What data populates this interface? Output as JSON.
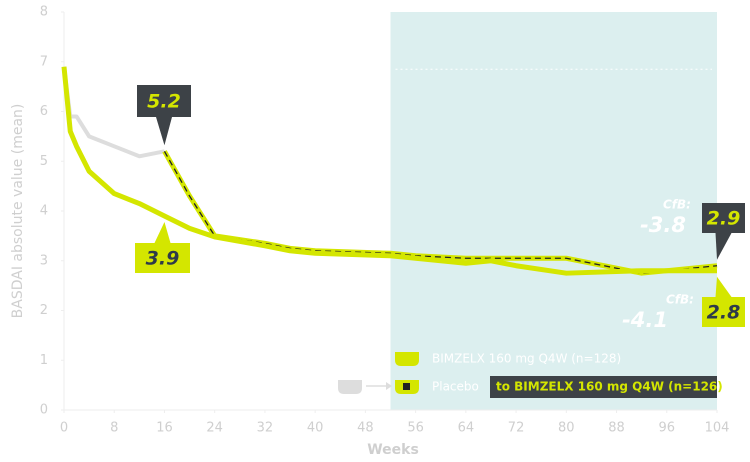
{
  "chart_data": {
    "type": "line",
    "y_label": "BASDAI absolute value (mean)",
    "x_label": "Weeks",
    "x": [
      0,
      1,
      2,
      4,
      8,
      12,
      16,
      20,
      24,
      32,
      36,
      40,
      52,
      56,
      64,
      68,
      72,
      80,
      92,
      104
    ],
    "series": [
      {
        "name": "BIMZELX 160 mg Q4W (n=128)",
        "color": "#d4e600",
        "values": [
          6.9,
          5.6,
          5.3,
          4.8,
          4.35,
          4.15,
          3.9,
          3.65,
          3.48,
          3.3,
          3.2,
          3.15,
          3.1,
          3.05,
          2.95,
          3.0,
          2.9,
          2.75,
          2.8,
          2.8
        ]
      },
      {
        "name": "Placebo",
        "color": "#dddddd",
        "values": [
          6.9,
          5.9,
          5.9,
          5.5,
          5.3,
          5.1,
          5.2,
          null,
          null,
          null,
          null,
          null,
          null,
          null,
          null,
          null,
          null,
          null,
          null,
          null
        ]
      },
      {
        "name": "to BIMZELX 160 mg Q4W (n=126)",
        "color": "#d4e600",
        "dashed": true,
        "values": [
          null,
          null,
          null,
          null,
          null,
          null,
          5.2,
          4.3,
          3.5,
          3.35,
          3.25,
          3.2,
          3.15,
          3.1,
          3.05,
          3.05,
          3.05,
          3.05,
          2.75,
          2.9
        ]
      }
    ],
    "xlim": [
      0,
      104
    ],
    "xticks": [
      0,
      8,
      16,
      24,
      32,
      40,
      48,
      56,
      64,
      72,
      80,
      88,
      96,
      104
    ],
    "ylim": [
      0,
      8
    ],
    "yticks": [
      0,
      1,
      2,
      3,
      4,
      5,
      6,
      7,
      8
    ],
    "shaded_xrange": [
      52,
      104
    ],
    "annotations": [
      {
        "text": "CfB:",
        "value": -3.8
      },
      {
        "text": "CfB:",
        "value": -4.1
      }
    ]
  }
}
